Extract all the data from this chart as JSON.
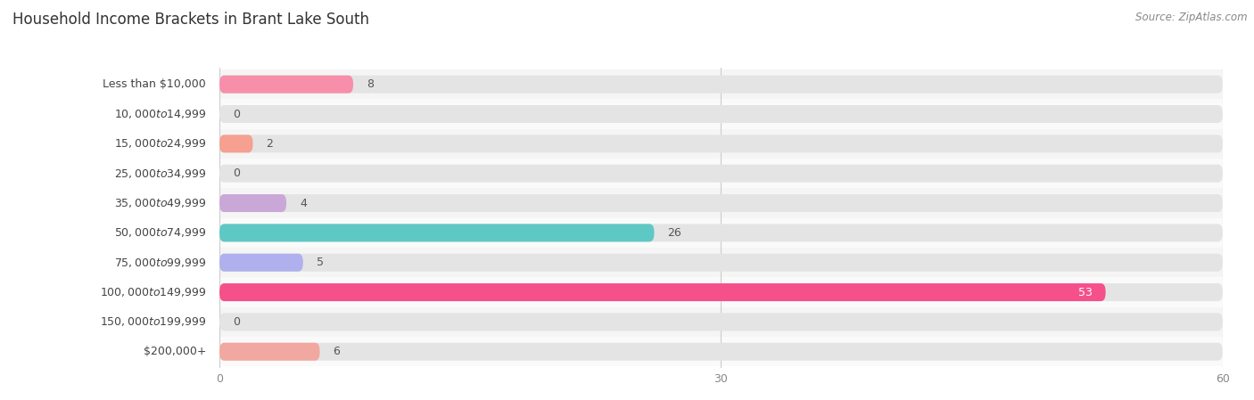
{
  "title": "Household Income Brackets in Brant Lake South",
  "source": "Source: ZipAtlas.com",
  "categories": [
    "Less than $10,000",
    "$10,000 to $14,999",
    "$15,000 to $24,999",
    "$25,000 to $34,999",
    "$35,000 to $49,999",
    "$50,000 to $74,999",
    "$75,000 to $99,999",
    "$100,000 to $149,999",
    "$150,000 to $199,999",
    "$200,000+"
  ],
  "values": [
    8,
    0,
    2,
    0,
    4,
    26,
    5,
    53,
    0,
    6
  ],
  "bar_colors": [
    "#f78faa",
    "#f9c98c",
    "#f5a090",
    "#a8bce8",
    "#c9a8d8",
    "#5ec8c5",
    "#b0b0ee",
    "#f5508a",
    "#f9c98c",
    "#f0a8a0"
  ],
  "xlim": [
    0,
    60
  ],
  "xticks": [
    0,
    30,
    60
  ],
  "bar_bg_color": "#e4e4e4",
  "row_colors": [
    "#f5f5f5",
    "#fafafa"
  ],
  "title_fontsize": 12,
  "label_fontsize": 9,
  "value_fontsize": 9,
  "source_fontsize": 8.5,
  "bar_height": 0.6,
  "value_inside_color": "white",
  "value_outside_color": "#555555",
  "inside_value_threshold": 50
}
